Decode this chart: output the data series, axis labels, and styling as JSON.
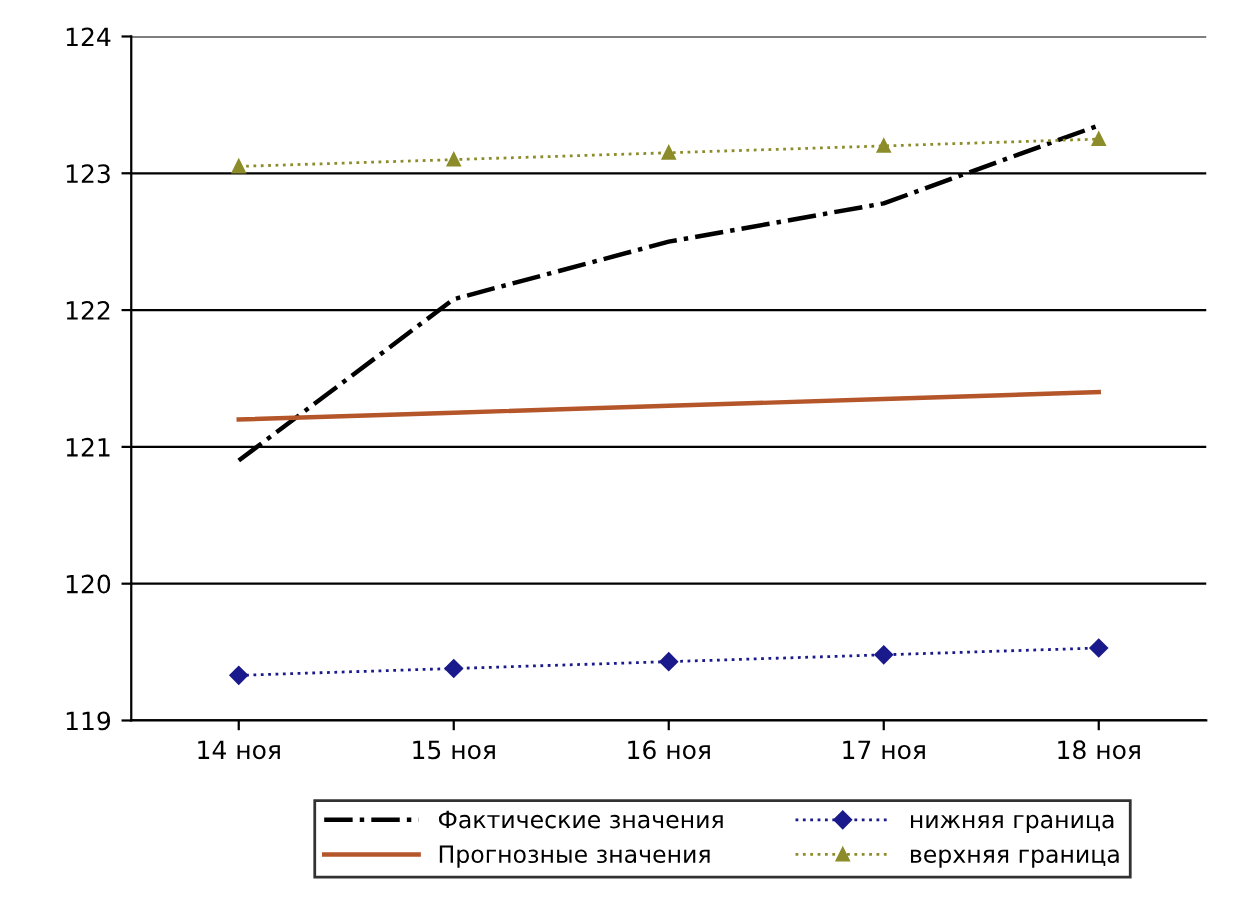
{
  "chart_data": {
    "type": "line",
    "categories": [
      "14 ноя",
      "15 ноя",
      "16 ноя",
      "17 ноя",
      "18 ноя"
    ],
    "ylim": [
      119,
      124
    ],
    "yticks": [
      119,
      120,
      121,
      122,
      123,
      124
    ],
    "grid": "y",
    "legend": "bottom",
    "series": [
      {
        "name": "Фактические значения",
        "color": "#000000",
        "line_style": "dashdot",
        "marker": "none",
        "values": [
          120.9,
          122.08,
          122.5,
          122.78,
          123.35
        ]
      },
      {
        "name": "Прогнозные значения",
        "color": "#b5552a",
        "line_style": "solid",
        "marker": "none",
        "values": [
          121.2,
          121.25,
          121.3,
          121.35,
          121.4
        ]
      },
      {
        "name": "нижняя граница",
        "color": "#1a1a8c",
        "line_style": "dotted",
        "marker": "diamond",
        "values": [
          119.33,
          119.38,
          119.43,
          119.48,
          119.53
        ]
      },
      {
        "name": "верхняя граница",
        "color": "#8c8c2a",
        "line_style": "dotted",
        "marker": "triangle",
        "values": [
          123.05,
          123.1,
          123.15,
          123.2,
          123.25
        ]
      }
    ]
  }
}
